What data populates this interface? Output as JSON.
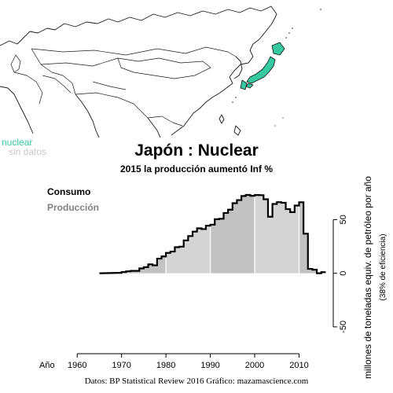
{
  "map": {
    "legend": [
      {
        "label": "nuclear",
        "color": "#35c9a1"
      },
      {
        "label": "sin datos",
        "color": "#c8c8c8"
      }
    ],
    "highlight_color": "#35c9a1"
  },
  "chart_data": {
    "type": "area",
    "title": "Japón :  Nuclear",
    "subtitle": "2015 la producción aumentó Inf %",
    "xlabel": "Año",
    "ylabel": "millones de toneladas equiv. de petróleo por año",
    "ylabel2": "(38% de eficiencia)",
    "xlim": [
      1955,
      2017
    ],
    "ylim": [
      -75,
      95
    ],
    "x_ticks": [
      1960,
      1970,
      1980,
      1990,
      2000,
      2010
    ],
    "y_ticks": [
      -50,
      0,
      50
    ],
    "legend": [
      {
        "name": "Consumo",
        "color": "#000000"
      },
      {
        "name": "Producción",
        "color": "#808080"
      }
    ],
    "series": [
      {
        "name": "Consumo",
        "x": [
          1965,
          1966,
          1967,
          1968,
          1969,
          1970,
          1971,
          1972,
          1973,
          1974,
          1975,
          1976,
          1977,
          1978,
          1979,
          1980,
          1981,
          1982,
          1983,
          1984,
          1985,
          1986,
          1987,
          1988,
          1989,
          1990,
          1991,
          1992,
          1993,
          1994,
          1995,
          1996,
          1997,
          1998,
          1999,
          2000,
          2001,
          2002,
          2003,
          2004,
          2005,
          2006,
          2007,
          2008,
          2009,
          2010,
          2011,
          2012,
          2013,
          2014,
          2015
        ],
        "values": [
          0.0,
          0.1,
          0.2,
          0.3,
          0.4,
          1.1,
          1.8,
          2.2,
          2.2,
          4.5,
          5.7,
          8.3,
          7.4,
          13.6,
          15.7,
          19.0,
          20.2,
          24.3,
          24.8,
          30.6,
          34.7,
          38.8,
          41.9,
          41.2,
          44.3,
          45.3,
          50.4,
          50.8,
          56.2,
          59.3,
          65.3,
          68.2,
          72.0,
          73.0,
          72.2,
          72.9,
          72.8,
          69.0,
          52.7,
          64.6,
          66.3,
          65.7,
          59.8,
          57.0,
          63.1,
          66.2,
          36.9,
          4.1,
          3.3,
          0.0,
          1.0
        ]
      },
      {
        "name": "Producción",
        "x": [
          1965,
          1966,
          1967,
          1968,
          1969,
          1970,
          1971,
          1972,
          1973,
          1974,
          1975,
          1976,
          1977,
          1978,
          1979,
          1980,
          1981,
          1982,
          1983,
          1984,
          1985,
          1986,
          1987,
          1988,
          1989,
          1990,
          1991,
          1992,
          1993,
          1994,
          1995,
          1996,
          1997,
          1998,
          1999,
          2000,
          2001,
          2002,
          2003,
          2004,
          2005,
          2006,
          2007,
          2008,
          2009,
          2010,
          2011,
          2012,
          2013,
          2014,
          2015
        ],
        "values": [
          0.0,
          0.1,
          0.2,
          0.3,
          0.4,
          1.1,
          1.8,
          2.2,
          2.2,
          4.5,
          5.7,
          8.3,
          7.4,
          13.6,
          15.7,
          19.0,
          20.2,
          24.3,
          24.8,
          30.6,
          34.7,
          38.8,
          41.9,
          41.2,
          44.3,
          45.3,
          50.4,
          50.8,
          56.2,
          59.3,
          65.3,
          68.2,
          72.0,
          73.0,
          72.2,
          72.9,
          72.8,
          69.0,
          52.7,
          64.6,
          66.3,
          65.7,
          59.8,
          57.0,
          63.1,
          66.2,
          36.9,
          4.1,
          3.3,
          0.0,
          1.0
        ]
      }
    ],
    "decade_lines": [
      1980,
      1990,
      2000,
      2010
    ],
    "fill_colors": [
      "#d4d4d4",
      "#c2c2c2"
    ]
  },
  "source": "Datos: BP Statistical Review 2016   Gráfico: mazamascience.com"
}
